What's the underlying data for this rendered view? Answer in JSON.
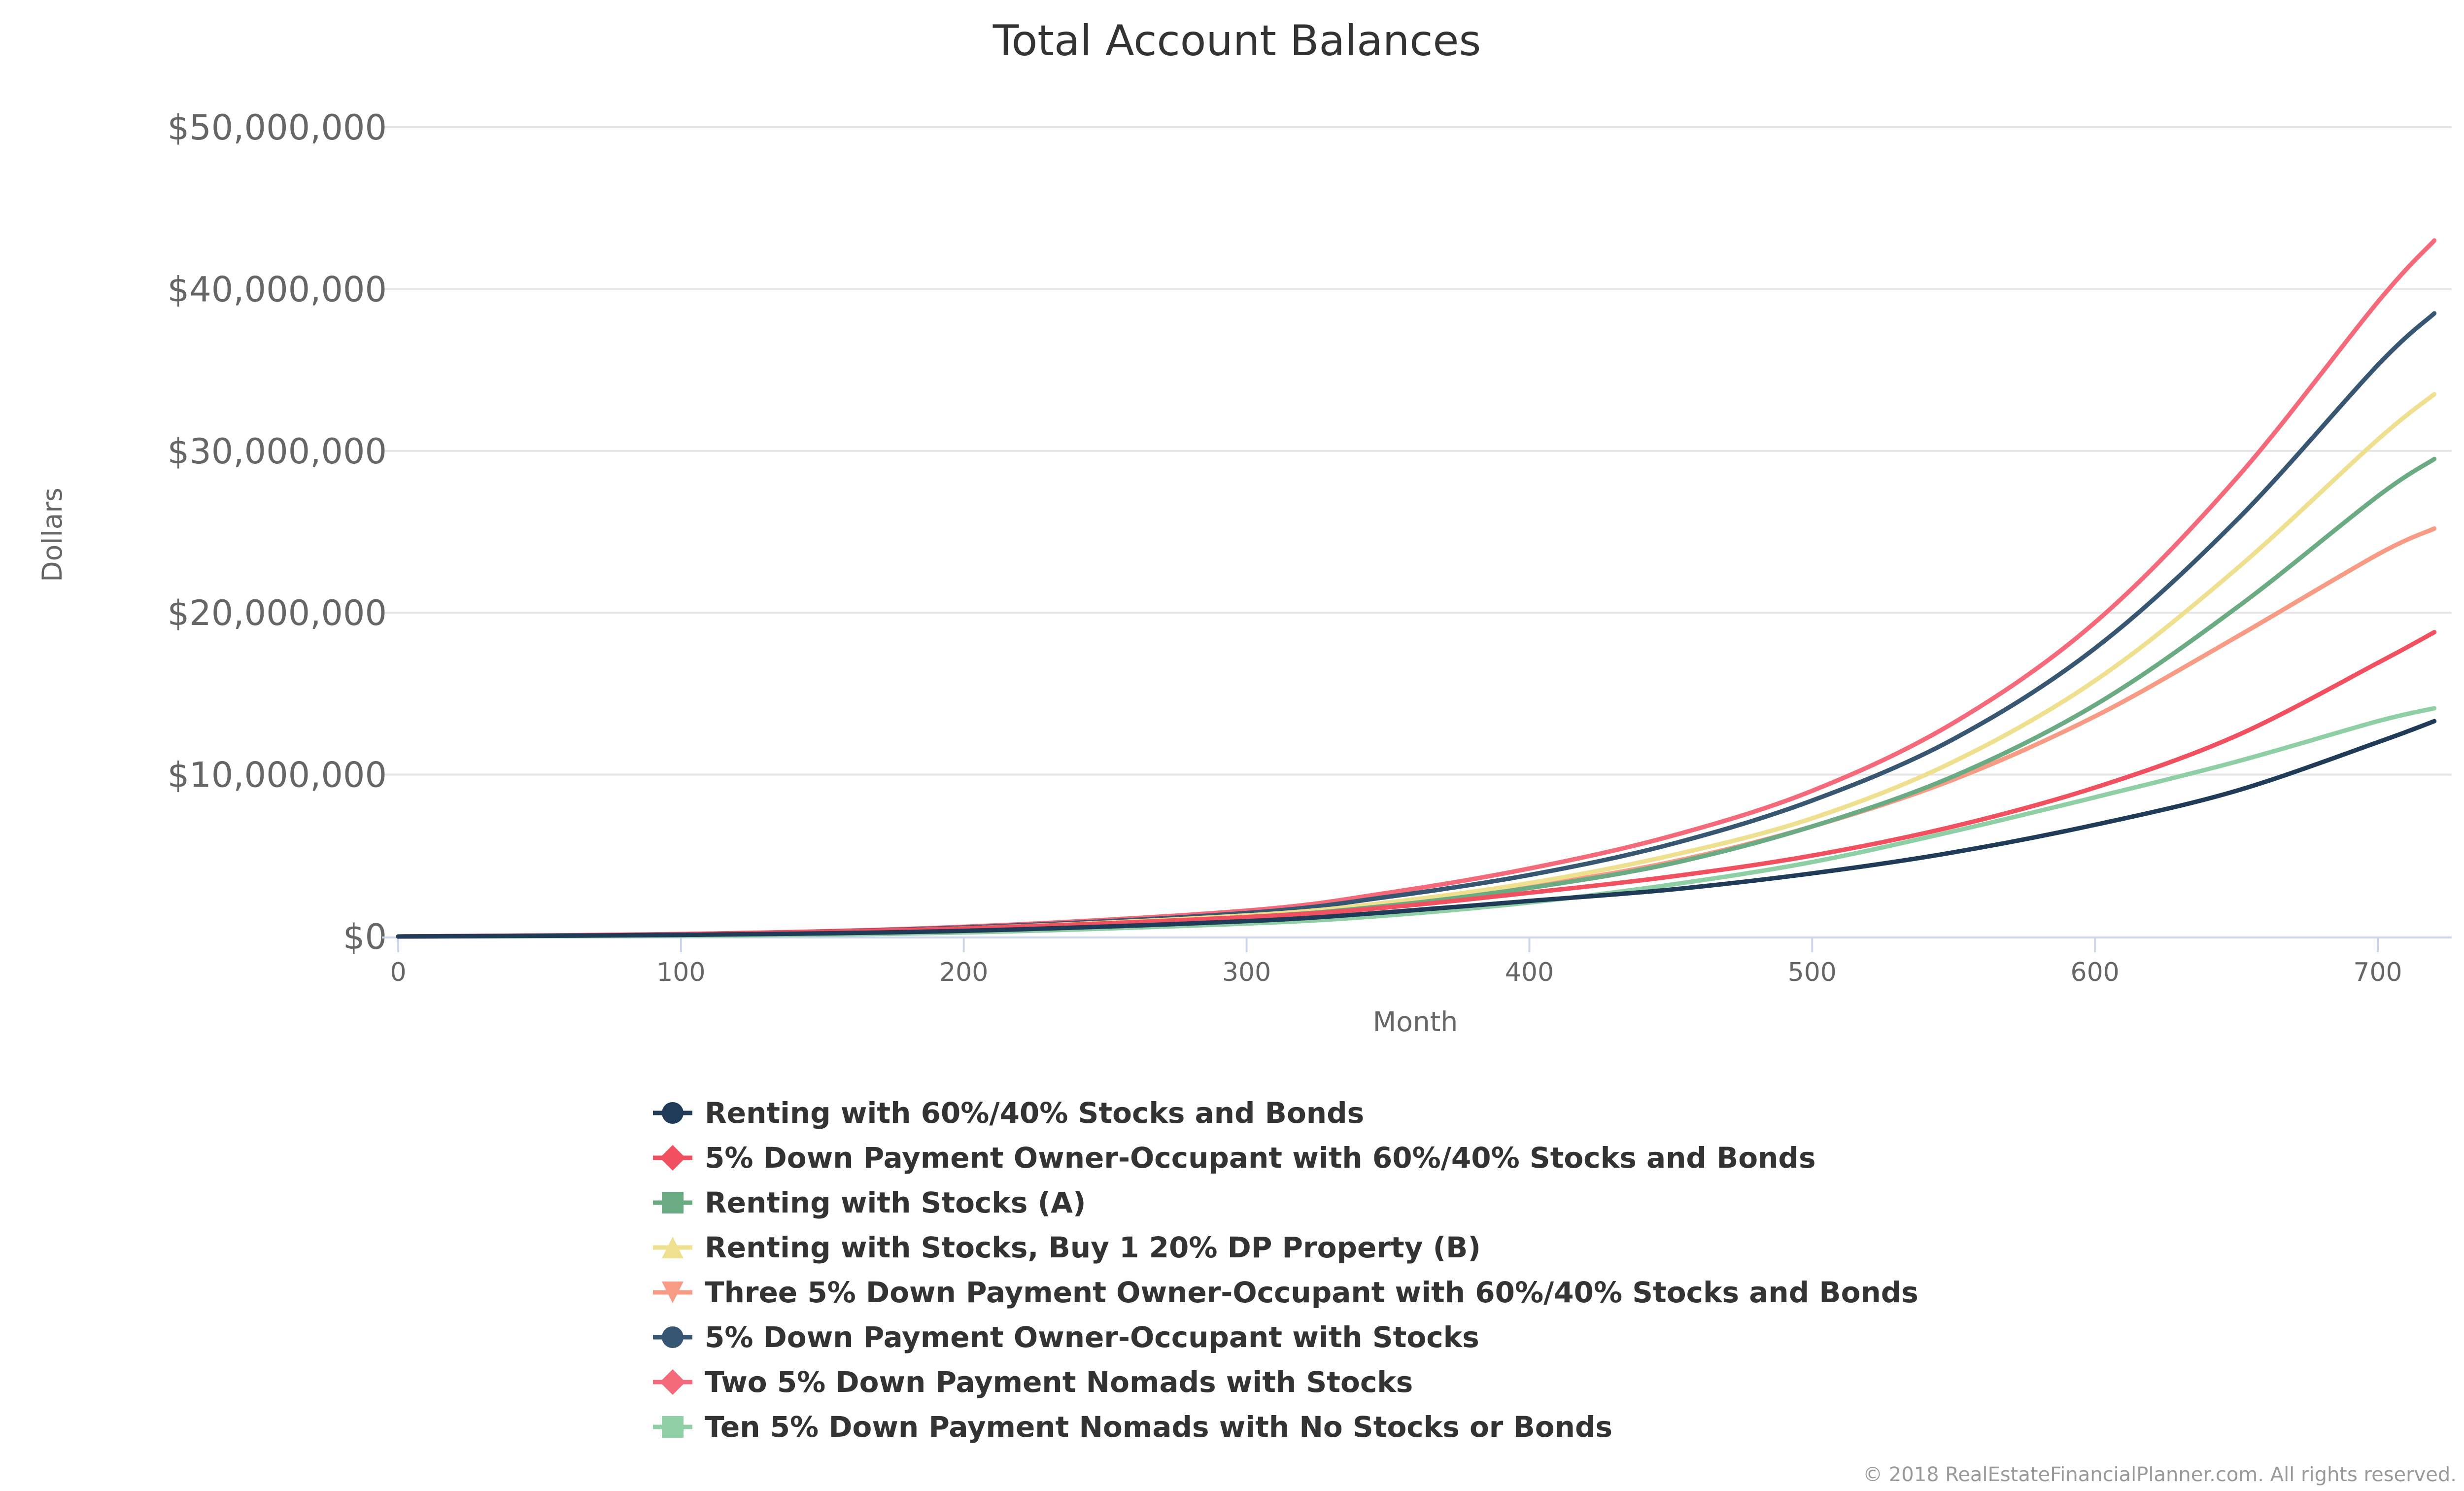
{
  "chart_data": {
    "type": "line",
    "title": "Total Account Balances",
    "xlabel": "Month",
    "ylabel": "Dollars",
    "xlim": [
      0,
      720
    ],
    "ylim": [
      0,
      50000000
    ],
    "x_ticks": [
      "0",
      "100",
      "200",
      "300",
      "400",
      "500",
      "600",
      "700"
    ],
    "x_tick_values": [
      0,
      100,
      200,
      300,
      400,
      500,
      600,
      700
    ],
    "y_ticks": [
      "$0",
      "$10,000,000",
      "$20,000,000",
      "$30,000,000",
      "$40,000,000",
      "$50,000,000"
    ],
    "y_tick_values": [
      0,
      10000000,
      20000000,
      30000000,
      40000000,
      50000000
    ],
    "grid": true,
    "legend_position": "bottom",
    "x": [
      0,
      100,
      200,
      300,
      350,
      400,
      450,
      500,
      550,
      600,
      650,
      700,
      720
    ],
    "series": [
      {
        "name": "Renting with 60%/40% Stocks and Bonds",
        "color": "#1f3b57",
        "marker": "circle",
        "values": [
          0,
          100000,
          350000,
          950000,
          1500000,
          2200000,
          2900000,
          3900000,
          5200000,
          6900000,
          9000000,
          12000000,
          13300000
        ]
      },
      {
        "name": "5% Down Payment Owner-Occupant with 60%/40% Stocks and Bonds",
        "color": "#f0505f",
        "marker": "diamond",
        "values": [
          0,
          150000,
          500000,
          1200000,
          1800000,
          2700000,
          3700000,
          5000000,
          6800000,
          9200000,
          12400000,
          16900000,
          18800000
        ]
      },
      {
        "name": "Renting with Stocks (A)",
        "color": "#6aab84",
        "marker": "square",
        "values": [
          0,
          120000,
          450000,
          1200000,
          1900000,
          3000000,
          4500000,
          6800000,
          9900000,
          14300000,
          20300000,
          27200000,
          29500000
        ]
      },
      {
        "name": "Renting with Stocks, Buy 1 20% DP Property (B)",
        "color": "#eee08e",
        "marker": "triangle",
        "values": [
          0,
          130000,
          500000,
          1300000,
          2100000,
          3300000,
          5000000,
          7300000,
          10800000,
          15800000,
          22700000,
          30700000,
          33500000
        ]
      },
      {
        "name": "Three 5% Down Payment Owner-Occupant with 60%/40% Stocks and Bonds",
        "color": "#f89b84",
        "marker": "triangle-down",
        "values": [
          0,
          140000,
          500000,
          1300000,
          2000000,
          3100000,
          4600000,
          6800000,
          9700000,
          13600000,
          18500000,
          23600000,
          25200000
        ]
      },
      {
        "name": "5% Down Payment Owner-Occupant with Stocks",
        "color": "#375672",
        "marker": "circle",
        "values": [
          0,
          140000,
          550000,
          1450000,
          2450000,
          3800000,
          5700000,
          8400000,
          12200000,
          17800000,
          25700000,
          35300000,
          38500000
        ]
      },
      {
        "name": "Two 5% Down Payment Nomads with Stocks",
        "color": "#f46a7a",
        "marker": "diamond",
        "values": [
          0,
          150000,
          600000,
          1600000,
          2700000,
          4200000,
          6200000,
          9000000,
          13200000,
          19400000,
          28300000,
          39200000,
          43000000
        ]
      },
      {
        "name": "Ten 5% Down Payment Nomads with No Stocks or Bonds",
        "color": "#8fcfa5",
        "marker": "square",
        "values": [
          0,
          50000,
          250000,
          800000,
          1300000,
          2100000,
          3200000,
          4600000,
          6500000,
          8600000,
          10800000,
          13300000,
          14100000
        ]
      }
    ]
  },
  "credit": "© 2018 RealEstateFinancialPlanner.com. All rights reserved."
}
